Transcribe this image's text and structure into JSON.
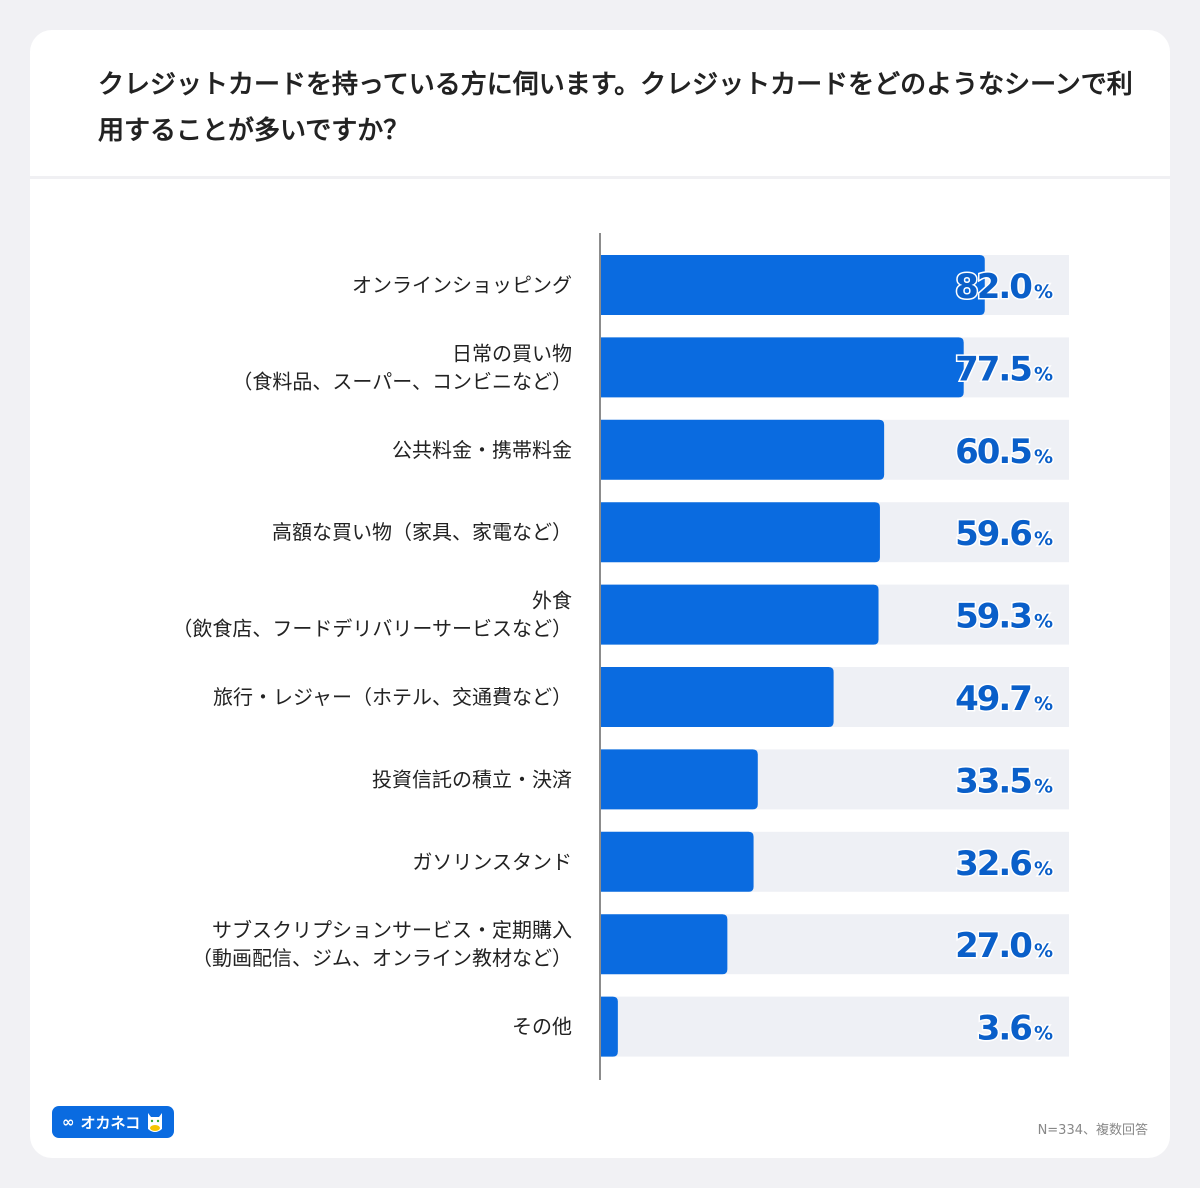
{
  "title": "クレジットカードを持っている方に伺います。クレジットカードをどのようなシーンで利用することが多いですか？",
  "note": "N=334、複数回答",
  "logo_text": "オカネコ",
  "colors": {
    "bar": "#0a6be0",
    "track": "#eef0f5",
    "value_text": "#0a5fc9",
    "axis": "#666666"
  },
  "chart_data": {
    "type": "bar",
    "orientation": "horizontal",
    "categories": [
      [
        "オンラインショッピング"
      ],
      [
        "日常の買い物",
        "（食料品、スーパー、コンビニなど）"
      ],
      [
        "公共料金・携帯料金"
      ],
      [
        "高額な買い物（家具、家電など）"
      ],
      [
        "外食",
        "（飲食店、フードデリバリーサービスなど）"
      ],
      [
        "旅行・レジャー（ホテル、交通費など）"
      ],
      [
        "投資信託の積立・決済"
      ],
      [
        "ガソリンスタンド"
      ],
      [
        "サブスクリプションサービス・定期購入",
        "（動画配信、ジム、オンライン教材など）"
      ],
      [
        "その他"
      ]
    ],
    "values": [
      82.0,
      77.5,
      60.5,
      59.6,
      59.3,
      49.7,
      33.5,
      32.6,
      27.0,
      3.6
    ],
    "value_labels": [
      "82.0",
      "77.5",
      "60.5",
      "59.6",
      "59.3",
      "49.7",
      "33.5",
      "32.6",
      "27.0",
      "3.6"
    ],
    "unit": "%",
    "xlim": [
      0,
      100
    ],
    "grid": false
  }
}
